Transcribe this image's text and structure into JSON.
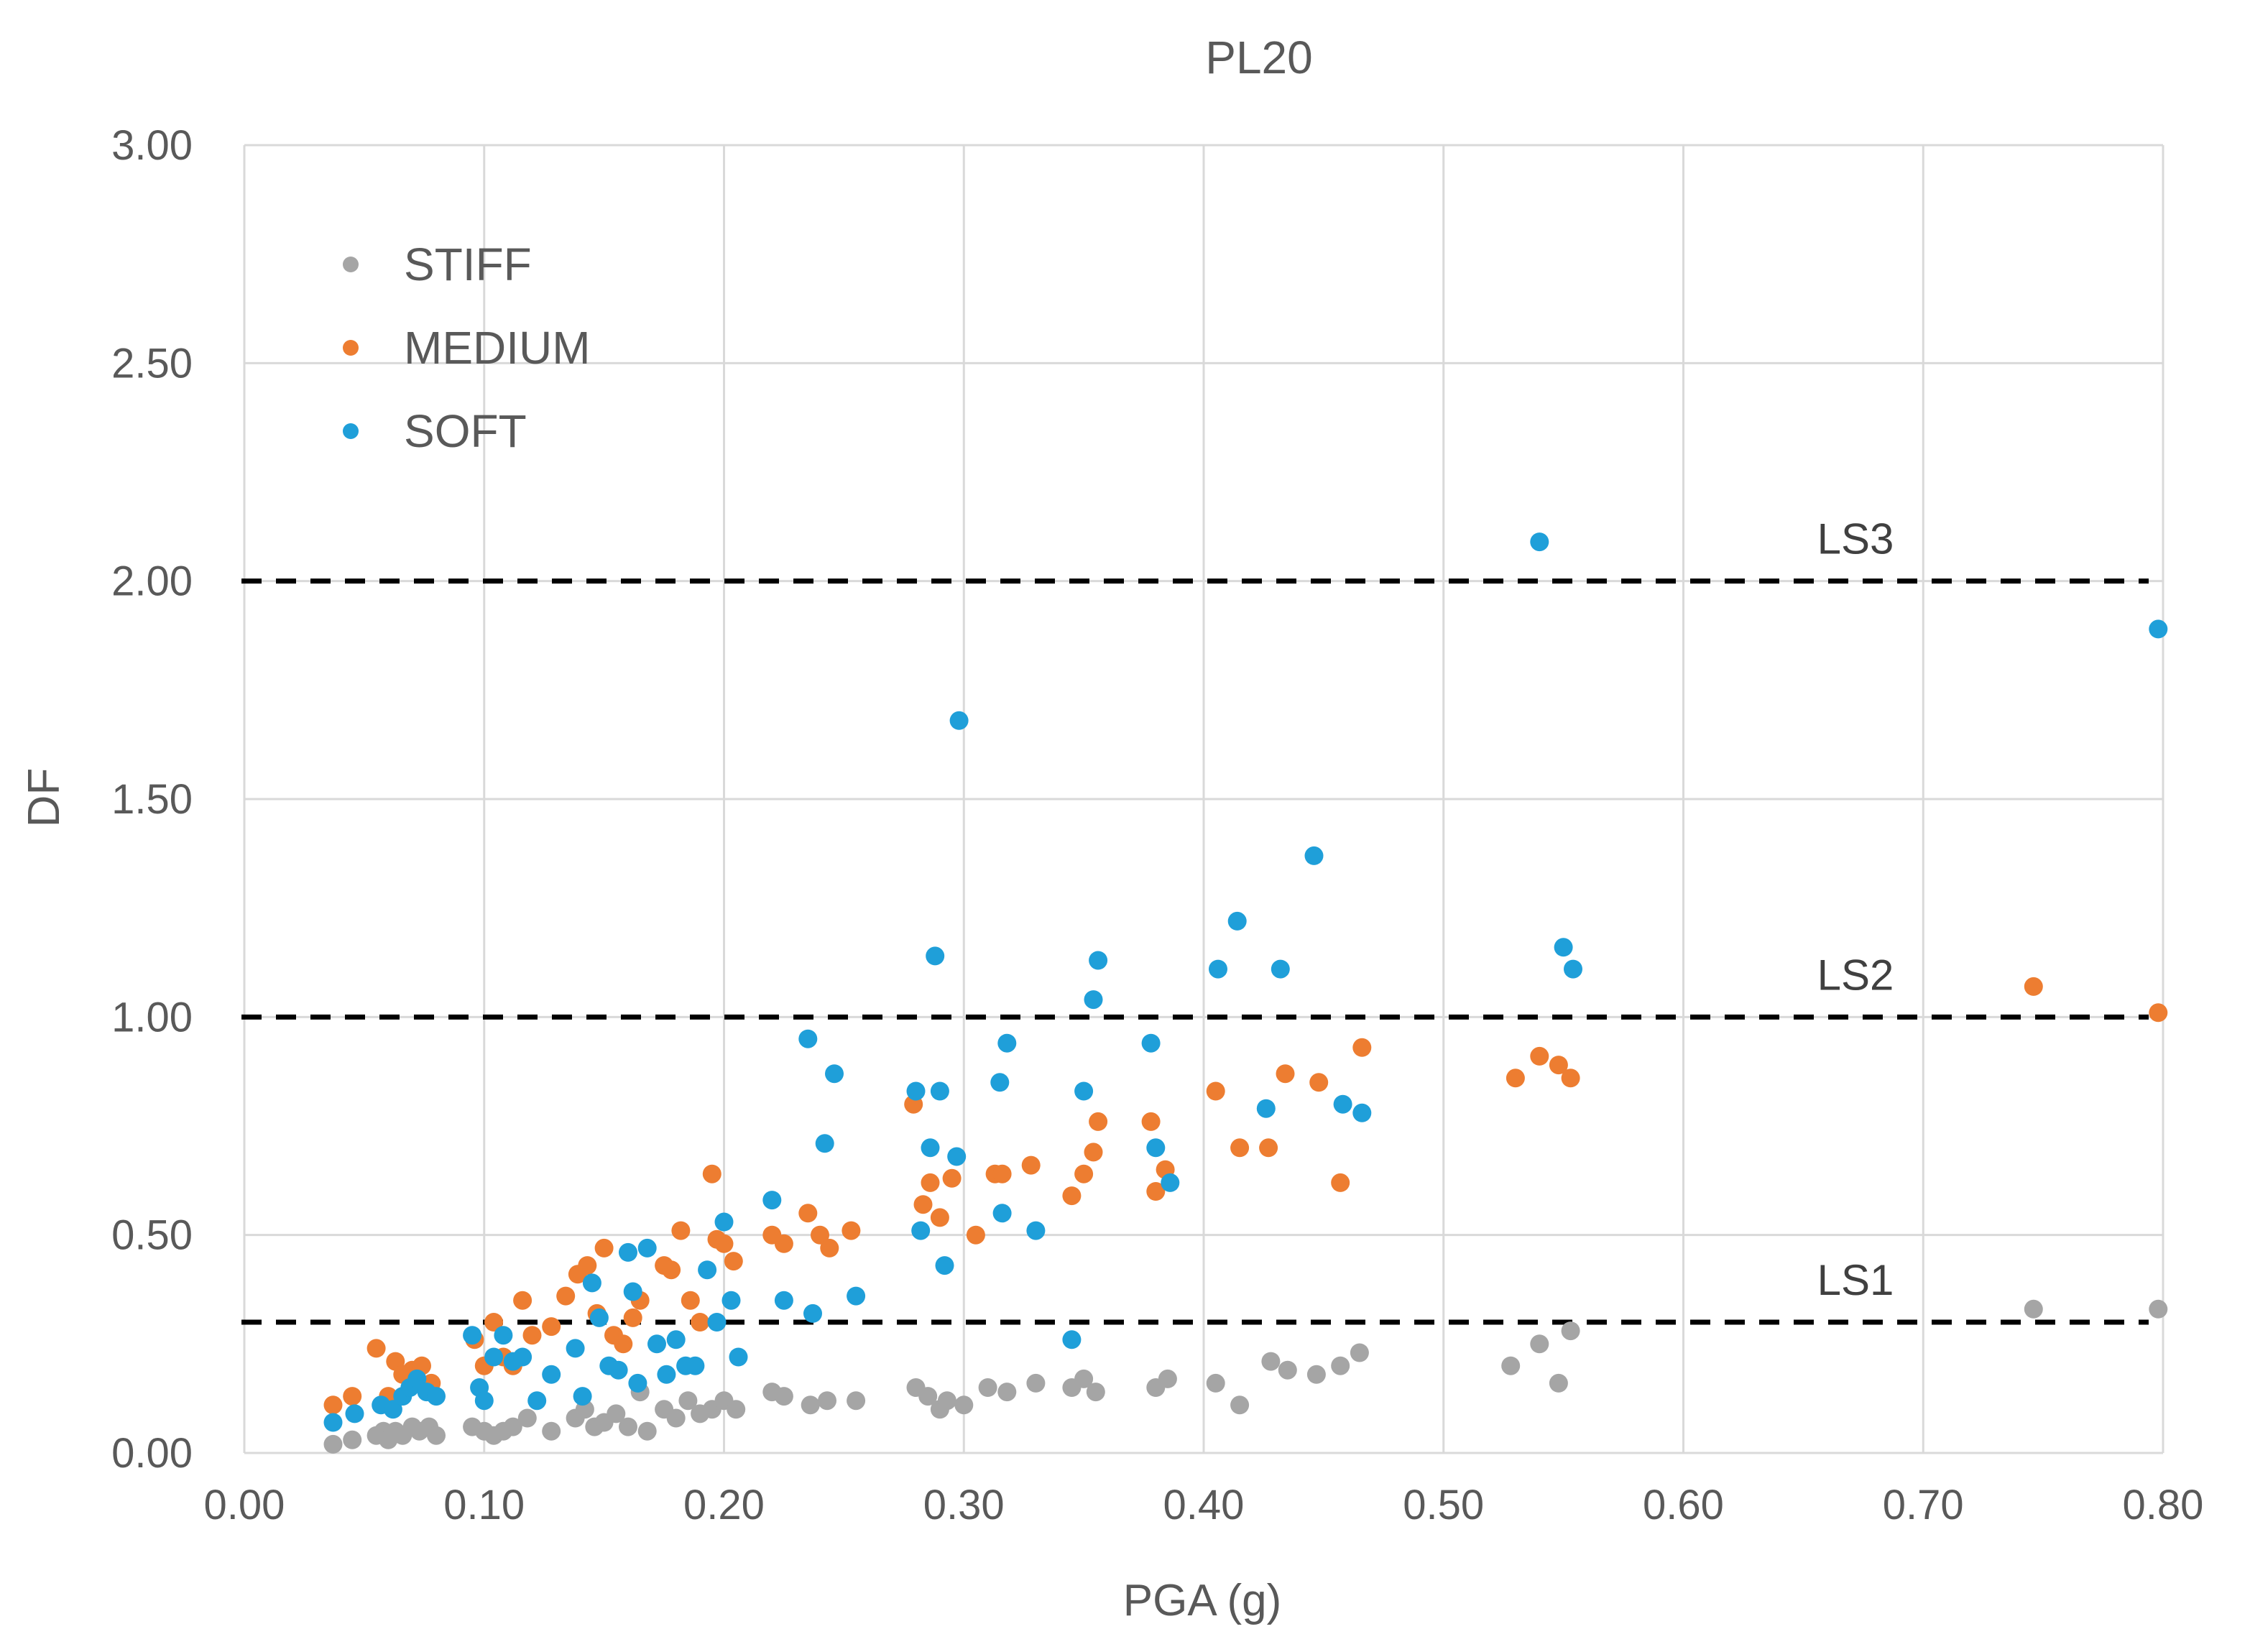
{
  "chart_data": {
    "type": "scatter",
    "title": "PL20",
    "xlabel": "PGA (g)",
    "ylabel": "DF",
    "xlim": [
      0,
      0.8
    ],
    "ylim": [
      0,
      3
    ],
    "x_ticks": [
      "0.00",
      "0.10",
      "0.20",
      "0.30",
      "0.40",
      "0.50",
      "0.60",
      "0.70",
      "0.80"
    ],
    "y_ticks": [
      "0.00",
      "0.50",
      "1.00",
      "1.50",
      "2.00",
      "2.50",
      "3.00"
    ],
    "grid": true,
    "legend_position": "top-left",
    "thresholds": [
      {
        "name": "LS3",
        "value": 2.0
      },
      {
        "name": "LS2",
        "value": 1.0
      },
      {
        "name": "LS1",
        "value": 0.3
      }
    ],
    "series": [
      {
        "name": "STIFF",
        "color": "#a5a5a5",
        "points": [
          [
            0.037,
            0.02
          ],
          [
            0.045,
            0.03
          ],
          [
            0.055,
            0.04
          ],
          [
            0.058,
            0.05
          ],
          [
            0.06,
            0.03
          ],
          [
            0.063,
            0.05
          ],
          [
            0.066,
            0.04
          ],
          [
            0.07,
            0.06
          ],
          [
            0.073,
            0.05
          ],
          [
            0.077,
            0.06
          ],
          [
            0.08,
            0.04
          ],
          [
            0.095,
            0.06
          ],
          [
            0.1,
            0.05
          ],
          [
            0.104,
            0.04
          ],
          [
            0.108,
            0.05
          ],
          [
            0.112,
            0.06
          ],
          [
            0.118,
            0.08
          ],
          [
            0.128,
            0.05
          ],
          [
            0.138,
            0.08
          ],
          [
            0.142,
            0.1
          ],
          [
            0.146,
            0.06
          ],
          [
            0.15,
            0.07
          ],
          [
            0.155,
            0.09
          ],
          [
            0.16,
            0.06
          ],
          [
            0.165,
            0.14
          ],
          [
            0.168,
            0.05
          ],
          [
            0.175,
            0.1
          ],
          [
            0.18,
            0.08
          ],
          [
            0.185,
            0.12
          ],
          [
            0.19,
            0.09
          ],
          [
            0.195,
            0.1
          ],
          [
            0.2,
            0.12
          ],
          [
            0.205,
            0.1
          ],
          [
            0.22,
            0.14
          ],
          [
            0.225,
            0.13
          ],
          [
            0.236,
            0.11
          ],
          [
            0.243,
            0.12
          ],
          [
            0.255,
            0.12
          ],
          [
            0.28,
            0.15
          ],
          [
            0.285,
            0.13
          ],
          [
            0.29,
            0.1
          ],
          [
            0.293,
            0.12
          ],
          [
            0.3,
            0.11
          ],
          [
            0.31,
            0.15
          ],
          [
            0.318,
            0.14
          ],
          [
            0.33,
            0.16
          ],
          [
            0.345,
            0.15
          ],
          [
            0.35,
            0.17
          ],
          [
            0.355,
            0.14
          ],
          [
            0.38,
            0.15
          ],
          [
            0.385,
            0.17
          ],
          [
            0.405,
            0.16
          ],
          [
            0.415,
            0.11
          ],
          [
            0.428,
            0.21
          ],
          [
            0.435,
            0.19
          ],
          [
            0.447,
            0.18
          ],
          [
            0.457,
            0.2
          ],
          [
            0.465,
            0.23
          ],
          [
            0.528,
            0.2
          ],
          [
            0.54,
            0.25
          ],
          [
            0.548,
            0.16
          ],
          [
            0.553,
            0.28
          ],
          [
            0.746,
            0.33
          ],
          [
            0.798,
            0.33
          ]
        ]
      },
      {
        "name": "MEDIUM",
        "color": "#ed7d31",
        "points": [
          [
            0.037,
            0.11
          ],
          [
            0.045,
            0.13
          ],
          [
            0.055,
            0.24
          ],
          [
            0.06,
            0.13
          ],
          [
            0.063,
            0.21
          ],
          [
            0.066,
            0.18
          ],
          [
            0.07,
            0.19
          ],
          [
            0.074,
            0.2
          ],
          [
            0.078,
            0.16
          ],
          [
            0.096,
            0.26
          ],
          [
            0.1,
            0.2
          ],
          [
            0.104,
            0.3
          ],
          [
            0.108,
            0.22
          ],
          [
            0.112,
            0.2
          ],
          [
            0.116,
            0.35
          ],
          [
            0.12,
            0.27
          ],
          [
            0.128,
            0.29
          ],
          [
            0.134,
            0.36
          ],
          [
            0.139,
            0.41
          ],
          [
            0.143,
            0.43
          ],
          [
            0.147,
            0.32
          ],
          [
            0.15,
            0.47
          ],
          [
            0.154,
            0.27
          ],
          [
            0.158,
            0.25
          ],
          [
            0.162,
            0.31
          ],
          [
            0.165,
            0.35
          ],
          [
            0.175,
            0.43
          ],
          [
            0.178,
            0.42
          ],
          [
            0.182,
            0.51
          ],
          [
            0.186,
            0.35
          ],
          [
            0.19,
            0.3
          ],
          [
            0.195,
            0.64
          ],
          [
            0.197,
            0.49
          ],
          [
            0.2,
            0.48
          ],
          [
            0.204,
            0.44
          ],
          [
            0.22,
            0.5
          ],
          [
            0.225,
            0.48
          ],
          [
            0.235,
            0.55
          ],
          [
            0.24,
            0.5
          ],
          [
            0.244,
            0.47
          ],
          [
            0.253,
            0.51
          ],
          [
            0.279,
            0.8
          ],
          [
            0.283,
            0.57
          ],
          [
            0.286,
            0.62
          ],
          [
            0.29,
            0.54
          ],
          [
            0.295,
            0.63
          ],
          [
            0.305,
            0.5
          ],
          [
            0.313,
            0.64
          ],
          [
            0.316,
            0.64
          ],
          [
            0.328,
            0.66
          ],
          [
            0.345,
            0.59
          ],
          [
            0.35,
            0.64
          ],
          [
            0.354,
            0.69
          ],
          [
            0.356,
            0.76
          ],
          [
            0.378,
            0.76
          ],
          [
            0.38,
            0.6
          ],
          [
            0.384,
            0.65
          ],
          [
            0.405,
            0.83
          ],
          [
            0.415,
            0.7
          ],
          [
            0.427,
            0.7
          ],
          [
            0.434,
            0.87
          ],
          [
            0.448,
            0.85
          ],
          [
            0.457,
            0.62
          ],
          [
            0.466,
            0.93
          ],
          [
            0.53,
            0.86
          ],
          [
            0.54,
            0.91
          ],
          [
            0.548,
            0.89
          ],
          [
            0.553,
            0.86
          ],
          [
            0.746,
            1.07
          ],
          [
            0.798,
            1.01
          ]
        ]
      },
      {
        "name": "SOFT",
        "color": "#1f9fd9",
        "points": [
          [
            0.037,
            0.07
          ],
          [
            0.046,
            0.09
          ],
          [
            0.057,
            0.11
          ],
          [
            0.062,
            0.1
          ],
          [
            0.066,
            0.13
          ],
          [
            0.069,
            0.15
          ],
          [
            0.072,
            0.17
          ],
          [
            0.076,
            0.14
          ],
          [
            0.08,
            0.13
          ],
          [
            0.095,
            0.27
          ],
          [
            0.098,
            0.15
          ],
          [
            0.1,
            0.12
          ],
          [
            0.104,
            0.22
          ],
          [
            0.108,
            0.27
          ],
          [
            0.112,
            0.21
          ],
          [
            0.116,
            0.22
          ],
          [
            0.122,
            0.12
          ],
          [
            0.128,
            0.18
          ],
          [
            0.138,
            0.24
          ],
          [
            0.141,
            0.13
          ],
          [
            0.145,
            0.39
          ],
          [
            0.148,
            0.31
          ],
          [
            0.152,
            0.2
          ],
          [
            0.156,
            0.19
          ],
          [
            0.16,
            0.46
          ],
          [
            0.162,
            0.37
          ],
          [
            0.164,
            0.16
          ],
          [
            0.168,
            0.47
          ],
          [
            0.172,
            0.25
          ],
          [
            0.176,
            0.18
          ],
          [
            0.18,
            0.26
          ],
          [
            0.184,
            0.2
          ],
          [
            0.188,
            0.2
          ],
          [
            0.193,
            0.42
          ],
          [
            0.197,
            0.3
          ],
          [
            0.2,
            0.53
          ],
          [
            0.203,
            0.35
          ],
          [
            0.206,
            0.22
          ],
          [
            0.22,
            0.58
          ],
          [
            0.225,
            0.35
          ],
          [
            0.235,
            0.95
          ],
          [
            0.237,
            0.32
          ],
          [
            0.242,
            0.71
          ],
          [
            0.246,
            0.87
          ],
          [
            0.255,
            0.36
          ],
          [
            0.28,
            0.83
          ],
          [
            0.282,
            0.51
          ],
          [
            0.286,
            0.7
          ],
          [
            0.288,
            1.14
          ],
          [
            0.29,
            0.83
          ],
          [
            0.292,
            0.43
          ],
          [
            0.297,
            0.68
          ],
          [
            0.298,
            1.68
          ],
          [
            0.315,
            0.85
          ],
          [
            0.316,
            0.55
          ],
          [
            0.318,
            0.94
          ],
          [
            0.33,
            0.51
          ],
          [
            0.345,
            0.26
          ],
          [
            0.35,
            0.83
          ],
          [
            0.354,
            1.04
          ],
          [
            0.356,
            1.13
          ],
          [
            0.378,
            0.94
          ],
          [
            0.38,
            0.7
          ],
          [
            0.386,
            0.62
          ],
          [
            0.406,
            1.11
          ],
          [
            0.414,
            1.22
          ],
          [
            0.426,
            0.79
          ],
          [
            0.432,
            1.11
          ],
          [
            0.446,
            1.37
          ],
          [
            0.458,
            0.8
          ],
          [
            0.466,
            0.78
          ],
          [
            0.54,
            2.09
          ],
          [
            0.55,
            1.16
          ],
          [
            0.554,
            1.11
          ],
          [
            0.798,
            1.89
          ]
        ]
      }
    ]
  }
}
